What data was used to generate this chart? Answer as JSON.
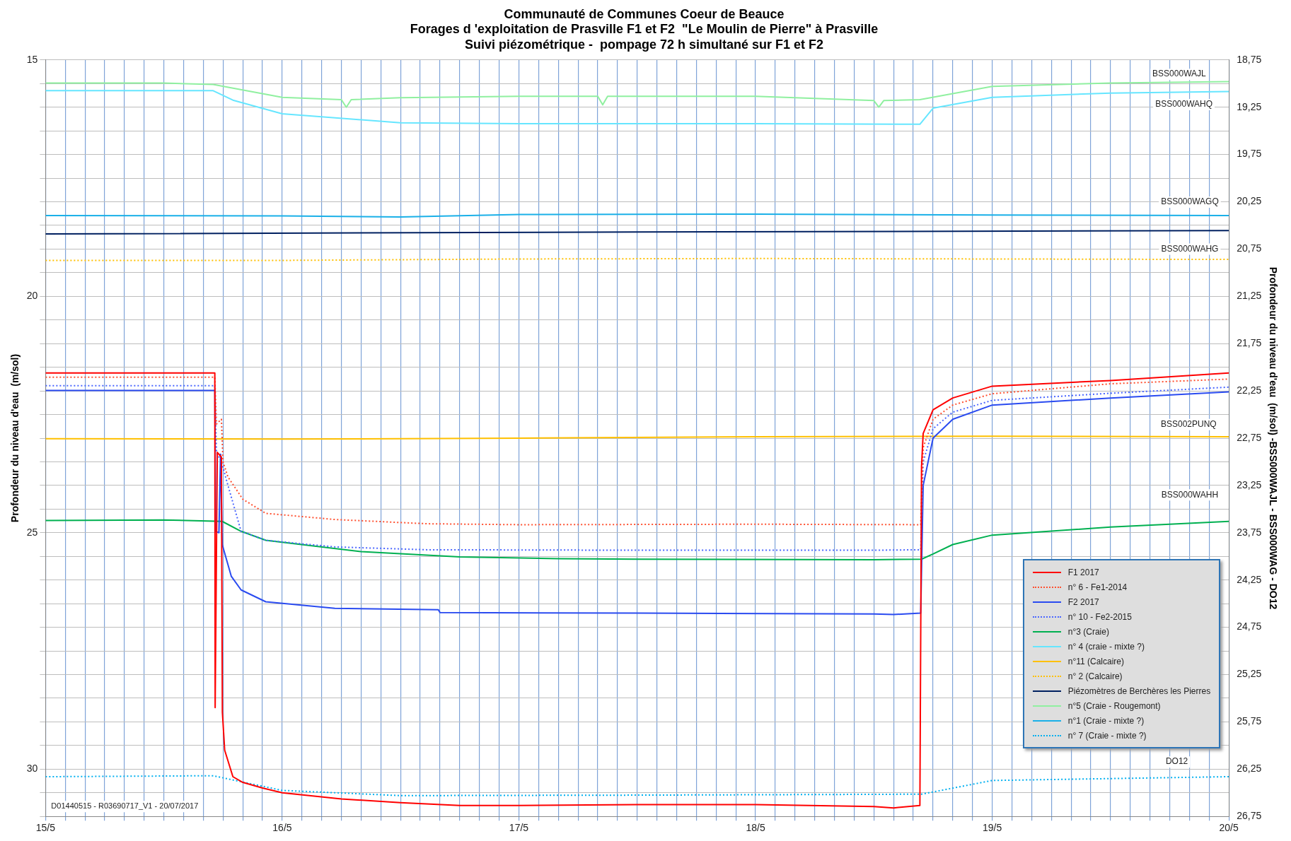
{
  "chart_data": {
    "type": "line",
    "title": "Communauté de Communes Coeur de Beauce",
    "subtitle": "Forages d 'exploitation de Prasville F1 et F2  \"Le Moulin de Pierre\" à Prasville\nSuivi piézométrique -  pompage 72 h simultané sur F1 et F2",
    "ylabel": "Profondeur du niveau d'eau  (m/sol)",
    "y2label": "Profondeur du niveau d'eau  (m/sol) -BSS000WAJL - BSS000WAG - DO12",
    "xlim": [
      "2017-05-15T00:00",
      "2017-05-20T00:00"
    ],
    "xticks": [
      {
        "value": "2017-05-15T00:00",
        "label": "15/5"
      },
      {
        "value": "2017-05-15T02:00",
        "label": null
      },
      {
        "value": "2017-05-15T04:00",
        "label": null
      },
      {
        "value": "2017-05-15T06:00",
        "label": null
      },
      {
        "value": "2017-05-15T08:00",
        "label": null
      },
      {
        "value": "2017-05-15T10:00",
        "label": null
      },
      {
        "value": "2017-05-15T12:00",
        "label": null
      },
      {
        "value": "2017-05-15T14:00",
        "label": null
      },
      {
        "value": "2017-05-15T16:00",
        "label": null
      },
      {
        "value": "2017-05-15T18:00",
        "label": null
      },
      {
        "value": "2017-05-15T20:00",
        "label": null
      },
      {
        "value": "2017-05-15T22:00",
        "label": null
      },
      {
        "value": "2017-05-16T00:00",
        "label": "16/5"
      },
      {
        "value": "2017-05-16T02:00",
        "label": null
      },
      {
        "value": "2017-05-16T04:00",
        "label": null
      },
      {
        "value": "2017-05-16T06:00",
        "label": null
      },
      {
        "value": "2017-05-16T08:00",
        "label": null
      },
      {
        "value": "2017-05-16T10:00",
        "label": null
      },
      {
        "value": "2017-05-16T12:00",
        "label": null
      },
      {
        "value": "2017-05-16T14:00",
        "label": null
      },
      {
        "value": "2017-05-16T16:00",
        "label": null
      },
      {
        "value": "2017-05-16T18:00",
        "label": null
      },
      {
        "value": "2017-05-16T20:00",
        "label": null
      },
      {
        "value": "2017-05-16T22:00",
        "label": null
      },
      {
        "value": "2017-05-17T00:00",
        "label": "17/5"
      },
      {
        "value": "2017-05-17T02:00",
        "label": null
      },
      {
        "value": "2017-05-17T04:00",
        "label": null
      },
      {
        "value": "2017-05-17T06:00",
        "label": null
      },
      {
        "value": "2017-05-17T08:00",
        "label": null
      },
      {
        "value": "2017-05-17T10:00",
        "label": null
      },
      {
        "value": "2017-05-17T12:00",
        "label": null
      },
      {
        "value": "2017-05-17T14:00",
        "label": null
      },
      {
        "value": "2017-05-17T16:00",
        "label": null
      },
      {
        "value": "2017-05-17T18:00",
        "label": null
      },
      {
        "value": "2017-05-17T20:00",
        "label": null
      },
      {
        "value": "2017-05-17T22:00",
        "label": null
      },
      {
        "value": "2017-05-18T00:00",
        "label": "18/5"
      },
      {
        "value": "2017-05-18T02:00",
        "label": null
      },
      {
        "value": "2017-05-18T04:00",
        "label": null
      },
      {
        "value": "2017-05-18T06:00",
        "label": null
      },
      {
        "value": "2017-05-18T08:00",
        "label": null
      },
      {
        "value": "2017-05-18T10:00",
        "label": null
      },
      {
        "value": "2017-05-18T12:00",
        "label": null
      },
      {
        "value": "2017-05-18T14:00",
        "label": null
      },
      {
        "value": "2017-05-18T16:00",
        "label": null
      },
      {
        "value": "2017-05-18T18:00",
        "label": null
      },
      {
        "value": "2017-05-18T20:00",
        "label": null
      },
      {
        "value": "2017-05-18T22:00",
        "label": null
      },
      {
        "value": "2017-05-19T00:00",
        "label": "19/5"
      },
      {
        "value": "2017-05-19T02:00",
        "label": null
      },
      {
        "value": "2017-05-19T04:00",
        "label": null
      },
      {
        "value": "2017-05-19T06:00",
        "label": null
      },
      {
        "value": "2017-05-19T08:00",
        "label": null
      },
      {
        "value": "2017-05-19T10:00",
        "label": null
      },
      {
        "value": "2017-05-19T12:00",
        "label": null
      },
      {
        "value": "2017-05-19T14:00",
        "label": null
      },
      {
        "value": "2017-05-19T16:00",
        "label": null
      },
      {
        "value": "2017-05-19T18:00",
        "label": null
      },
      {
        "value": "2017-05-19T20:00",
        "label": null
      },
      {
        "value": "2017-05-19T22:00",
        "label": null
      },
      {
        "value": "2017-05-20T00:00",
        "label": "20/5"
      }
    ],
    "ylim": [
      31,
      15
    ],
    "yticks": [
      {
        "value": 15,
        "label": "15"
      },
      {
        "value": 15.5,
        "label": null
      },
      {
        "value": 16,
        "label": null
      },
      {
        "value": 16.5,
        "label": null
      },
      {
        "value": 17,
        "label": null
      },
      {
        "value": 17.5,
        "label": null
      },
      {
        "value": 18,
        "label": null
      },
      {
        "value": 18.5,
        "label": null
      },
      {
        "value": 19,
        "label": null
      },
      {
        "value": 19.5,
        "label": null
      },
      {
        "value": 20,
        "label": "20"
      },
      {
        "value": 20.5,
        "label": null
      },
      {
        "value": 21,
        "label": null
      },
      {
        "value": 21.5,
        "label": null
      },
      {
        "value": 22,
        "label": null
      },
      {
        "value": 22.5,
        "label": null
      },
      {
        "value": 23,
        "label": null
      },
      {
        "value": 23.5,
        "label": null
      },
      {
        "value": 24,
        "label": null
      },
      {
        "value": 24.5,
        "label": null
      },
      {
        "value": 25,
        "label": "25"
      },
      {
        "value": 25.5,
        "label": null
      },
      {
        "value": 26,
        "label": null
      },
      {
        "value": 26.5,
        "label": null
      },
      {
        "value": 27,
        "label": null
      },
      {
        "value": 27.5,
        "label": null
      },
      {
        "value": 28,
        "label": null
      },
      {
        "value": 28.5,
        "label": null
      },
      {
        "value": 29,
        "label": null
      },
      {
        "value": 29.5,
        "label": null
      },
      {
        "value": 30,
        "label": "30"
      },
      {
        "value": 30.5,
        "label": null
      },
      {
        "value": 31,
        "label": null
      }
    ],
    "y2lim": [
      26.75,
      18.75
    ],
    "y2ticks": [
      {
        "value": 18.75,
        "label": "18,75"
      },
      {
        "value": 19,
        "label": null
      },
      {
        "value": 19.25,
        "label": "19,25"
      },
      {
        "value": 19.5,
        "label": null
      },
      {
        "value": 19.75,
        "label": "19,75"
      },
      {
        "value": 20,
        "label": null
      },
      {
        "value": 20.25,
        "label": "20,25"
      },
      {
        "value": 20.5,
        "label": null
      },
      {
        "value": 20.75,
        "label": "20,75"
      },
      {
        "value": 21,
        "label": null
      },
      {
        "value": 21.25,
        "label": "21,25"
      },
      {
        "value": 21.5,
        "label": null
      },
      {
        "value": 21.75,
        "label": "21,75"
      },
      {
        "value": 22,
        "label": null
      },
      {
        "value": 22.25,
        "label": "22,25"
      },
      {
        "value": 22.5,
        "label": null
      },
      {
        "value": 22.75,
        "label": "22,75"
      },
      {
        "value": 23,
        "label": null
      },
      {
        "value": 23.25,
        "label": "23,25"
      },
      {
        "value": 23.5,
        "label": null
      },
      {
        "value": 23.75,
        "label": "23,75"
      },
      {
        "value": 24,
        "label": null
      },
      {
        "value": 24.25,
        "label": "24,25"
      },
      {
        "value": 24.5,
        "label": null
      },
      {
        "value": 24.75,
        "label": "24,75"
      },
      {
        "value": 25,
        "label": null
      },
      {
        "value": 25.25,
        "label": "25,25"
      },
      {
        "value": 25.5,
        "label": null
      },
      {
        "value": 25.75,
        "label": "25,75"
      },
      {
        "value": 26,
        "label": null
      },
      {
        "value": 26.25,
        "label": "26,25"
      },
      {
        "value": 26.5,
        "label": null
      },
      {
        "value": 26.75,
        "label": "26,75"
      }
    ],
    "grid": true,
    "legend": "bottom right",
    "series": [
      {
        "name": "F1 2017",
        "color": "#ff0000",
        "line_style": "solid",
        "x": [
          "2017-05-15T00:00",
          "2017-05-15T17:10",
          "2017-05-15T17:12",
          "2017-05-15T17:25",
          "2017-05-15T17:50",
          "2017-05-15T17:56",
          "2017-05-15T18:10",
          "2017-05-15T19:00",
          "2017-05-15T20:00",
          "2017-05-15T22:00",
          "2017-05-16T00:00",
          "2017-05-16T06:00",
          "2017-05-16T12:00",
          "2017-05-16T18:00",
          "2017-05-17T00:00",
          "2017-05-17T12:00",
          "2017-05-18T00:00",
          "2017-05-18T12:00",
          "2017-05-18T14:00",
          "2017-05-18T16:40",
          "2017-05-18T16:50",
          "2017-05-18T17:00",
          "2017-05-18T18:00",
          "2017-05-18T20:00",
          "2017-05-19T00:00",
          "2017-05-19T12:00",
          "2017-05-20T00:00"
        ],
        "values": [
          21.62,
          21.62,
          28.7,
          23.3,
          23.4,
          28.8,
          29.6,
          30.16,
          30.28,
          30.4,
          30.5,
          30.63,
          30.71,
          30.77,
          30.77,
          30.75,
          30.75,
          30.79,
          30.82,
          30.77,
          23.6,
          22.9,
          22.4,
          22.15,
          21.9,
          21.78,
          21.62
        ]
      },
      {
        "name": "n° 6 - Fe1-2014",
        "color": "#ff5030",
        "line_style": "dotted",
        "x": [
          "2017-05-15T00:00",
          "2017-05-15T17:10",
          "2017-05-15T17:20",
          "2017-05-15T17:50",
          "2017-05-15T18:00",
          "2017-05-15T18:30",
          "2017-05-15T20:00",
          "2017-05-15T22:20",
          "2017-05-16T05:20",
          "2017-05-16T14:40",
          "2017-05-17T00:00",
          "2017-05-18T00:00",
          "2017-05-18T16:45",
          "2017-05-18T17:00",
          "2017-05-18T18:00",
          "2017-05-18T20:00",
          "2017-05-19T00:00",
          "2017-05-19T12:00",
          "2017-05-20T00:00"
        ],
        "values": [
          21.71,
          21.71,
          22.7,
          22.6,
          23.5,
          23.82,
          24.29,
          24.59,
          24.72,
          24.81,
          24.83,
          24.82,
          24.83,
          23.2,
          22.6,
          22.3,
          22.06,
          21.85,
          21.75
        ]
      },
      {
        "name": "F2 2017",
        "color": "#2a4bf0",
        "line_style": "solid",
        "x": [
          "2017-05-15T00:00",
          "2017-05-15T17:10",
          "2017-05-15T17:15",
          "2017-05-15T17:35",
          "2017-05-15T17:45",
          "2017-05-15T17:55",
          "2017-05-15T18:50",
          "2017-05-15T19:50",
          "2017-05-15T22:20",
          "2017-05-16T05:20",
          "2017-05-16T15:50",
          "2017-05-16T16:00",
          "2017-05-17T12:00",
          "2017-05-18T12:00",
          "2017-05-18T14:00",
          "2017-05-18T16:45",
          "2017-05-18T17:00",
          "2017-05-18T18:00",
          "2017-05-18T20:00",
          "2017-05-19T00:00",
          "2017-05-19T12:00",
          "2017-05-20T00:00"
        ],
        "values": [
          21.99,
          21.99,
          24.97,
          25.0,
          23.34,
          25.25,
          25.92,
          26.21,
          26.46,
          26.6,
          26.63,
          26.69,
          26.7,
          26.72,
          26.73,
          26.7,
          24.0,
          23.0,
          22.6,
          22.3,
          22.15,
          22.02
        ]
      },
      {
        "name": "n° 10 - Fe2-2015",
        "color": "#4a66ff",
        "line_style": "dotted",
        "x": [
          "2017-05-15T00:00",
          "2017-05-15T17:10",
          "2017-05-15T17:20",
          "2017-05-15T17:50",
          "2017-05-15T18:30",
          "2017-05-15T19:50",
          "2017-05-15T22:20",
          "2017-05-16T05:20",
          "2017-05-16T14:40",
          "2017-05-17T12:00",
          "2017-05-18T12:00",
          "2017-05-18T16:45",
          "2017-05-18T17:00",
          "2017-05-18T18:00",
          "2017-05-18T20:00",
          "2017-05-19T00:00",
          "2017-05-19T12:00",
          "2017-05-20T00:00"
        ],
        "values": [
          21.89,
          21.89,
          23.3,
          23.5,
          24.0,
          24.97,
          25.16,
          25.3,
          25.36,
          25.37,
          25.37,
          25.36,
          23.5,
          22.8,
          22.45,
          22.2,
          22.05,
          21.92
        ]
      },
      {
        "name": "n°3 (Craie)",
        "color": "#00b050",
        "line_style": "solid",
        "x": [
          "2017-05-15T00:00",
          "2017-05-15T12:00",
          "2017-05-15T17:55",
          "2017-05-15T19:50",
          "2017-05-15T22:20",
          "2017-05-16T08:00",
          "2017-05-16T18:00",
          "2017-05-17T04:00",
          "2017-05-17T12:00",
          "2017-05-18T12:00",
          "2017-05-18T16:50",
          "2017-05-18T18:00",
          "2017-05-18T20:00",
          "2017-05-19T00:00",
          "2017-05-19T12:00",
          "2017-05-20T00:00"
        ],
        "values": [
          24.74,
          24.73,
          24.76,
          24.97,
          25.16,
          25.4,
          25.51,
          25.55,
          25.56,
          25.57,
          25.56,
          25.45,
          25.25,
          25.05,
          24.88,
          24.76
        ]
      },
      {
        "name": "n° 4 (craie - mixte ?)",
        "color": "#66e6ff",
        "line_style": "solid",
        "x": [
          "2017-05-15T00:00",
          "2017-05-15T17:00",
          "2017-05-15T19:00",
          "2017-05-16T00:00",
          "2017-05-16T12:00",
          "2017-05-17T00:00",
          "2017-05-18T00:00",
          "2017-05-18T16:40",
          "2017-05-18T18:00",
          "2017-05-19T00:00",
          "2017-05-19T12:00",
          "2017-05-20T00:00"
        ],
        "values": [
          15.65,
          15.65,
          15.85,
          16.14,
          16.33,
          16.35,
          16.35,
          16.36,
          16.02,
          15.79,
          15.7,
          15.67
        ]
      },
      {
        "name": "n°11 (Calcaire)",
        "color": "#ffc000",
        "line_style": "solid",
        "x": [
          "2017-05-15T00:00",
          "2017-05-16T00:00",
          "2017-05-17T00:00",
          "2017-05-18T00:00",
          "2017-05-19T00:00",
          "2017-05-20T00:00"
        ],
        "values": [
          23.01,
          23.02,
          23.0,
          22.97,
          22.96,
          22.97
        ]
      },
      {
        "name": "n° 2 (Calcaire)",
        "color": "#ffc000",
        "line_style": "dotted",
        "x": [
          "2017-05-15T00:00",
          "2017-05-16T00:00",
          "2017-05-17T00:00",
          "2017-05-18T00:00",
          "2017-05-19T00:00",
          "2017-05-20T00:00"
        ],
        "values": [
          19.24,
          19.24,
          19.21,
          19.2,
          19.21,
          19.22
        ]
      },
      {
        "name": "Piézomètres de  Berchères les Pierres",
        "color": "#002060",
        "line_style": "solid",
        "x": [
          "2017-05-15T00:00",
          "2017-05-17T12:00",
          "2017-05-20T00:00"
        ],
        "values": [
          18.68,
          18.64,
          18.61
        ]
      },
      {
        "name": "n°5 (Craie - Rougemont)",
        "color": "#90f0a0",
        "line_style": "solid",
        "x": [
          "2017-05-15T00:00",
          "2017-05-15T12:00",
          "2017-05-15T17:00",
          "2017-05-16T00:00",
          "2017-05-16T06:00",
          "2017-05-16T06:30",
          "2017-05-16T07:00",
          "2017-05-16T12:00",
          "2017-05-17T00:00",
          "2017-05-17T08:00",
          "2017-05-17T08:30",
          "2017-05-17T09:00",
          "2017-05-18T00:00",
          "2017-05-18T12:00",
          "2017-05-18T12:30",
          "2017-05-18T13:00",
          "2017-05-18T16:40",
          "2017-05-19T00:00",
          "2017-05-19T12:00",
          "2017-05-20T00:00"
        ],
        "values": [
          15.49,
          15.49,
          15.52,
          15.79,
          15.84,
          16.0,
          15.84,
          15.8,
          15.77,
          15.77,
          15.95,
          15.77,
          15.77,
          15.86,
          16.0,
          15.86,
          15.84,
          15.56,
          15.49,
          15.46
        ]
      },
      {
        "name": "n°1 (Craie - mixte ?)",
        "color": "#1ab0e8",
        "line_style": "solid",
        "x": [
          "2017-05-15T00:00",
          "2017-05-16T00:00",
          "2017-05-16T12:00",
          "2017-05-17T00:00",
          "2017-05-18T00:00",
          "2017-05-19T00:00",
          "2017-05-20T00:00"
        ],
        "values": [
          18.29,
          18.3,
          18.32,
          18.27,
          18.26,
          18.28,
          18.29
        ]
      },
      {
        "name": "n° 7 (Craie - mixte ?)",
        "color": "#00b0f0",
        "line_style": "dotted",
        "x": [
          "2017-05-15T00:00",
          "2017-05-15T17:00",
          "2017-05-16T00:00",
          "2017-05-16T12:00",
          "2017-05-17T12:00",
          "2017-05-18T16:50",
          "2017-05-19T00:00",
          "2017-05-19T12:00",
          "2017-05-20T00:00"
        ],
        "values": [
          30.16,
          30.14,
          30.45,
          30.56,
          30.55,
          30.53,
          30.24,
          30.2,
          30.16
        ]
      }
    ],
    "annotations": [
      "BSS000WAJL",
      "BSS000WAHQ",
      "BSS000WAGQ",
      "BSS000WAHG",
      "BSS002PUNQ",
      "BSS000WAHH",
      "DO12",
      "D01440515 - R03690717_V1 - 20/07/2017"
    ]
  }
}
